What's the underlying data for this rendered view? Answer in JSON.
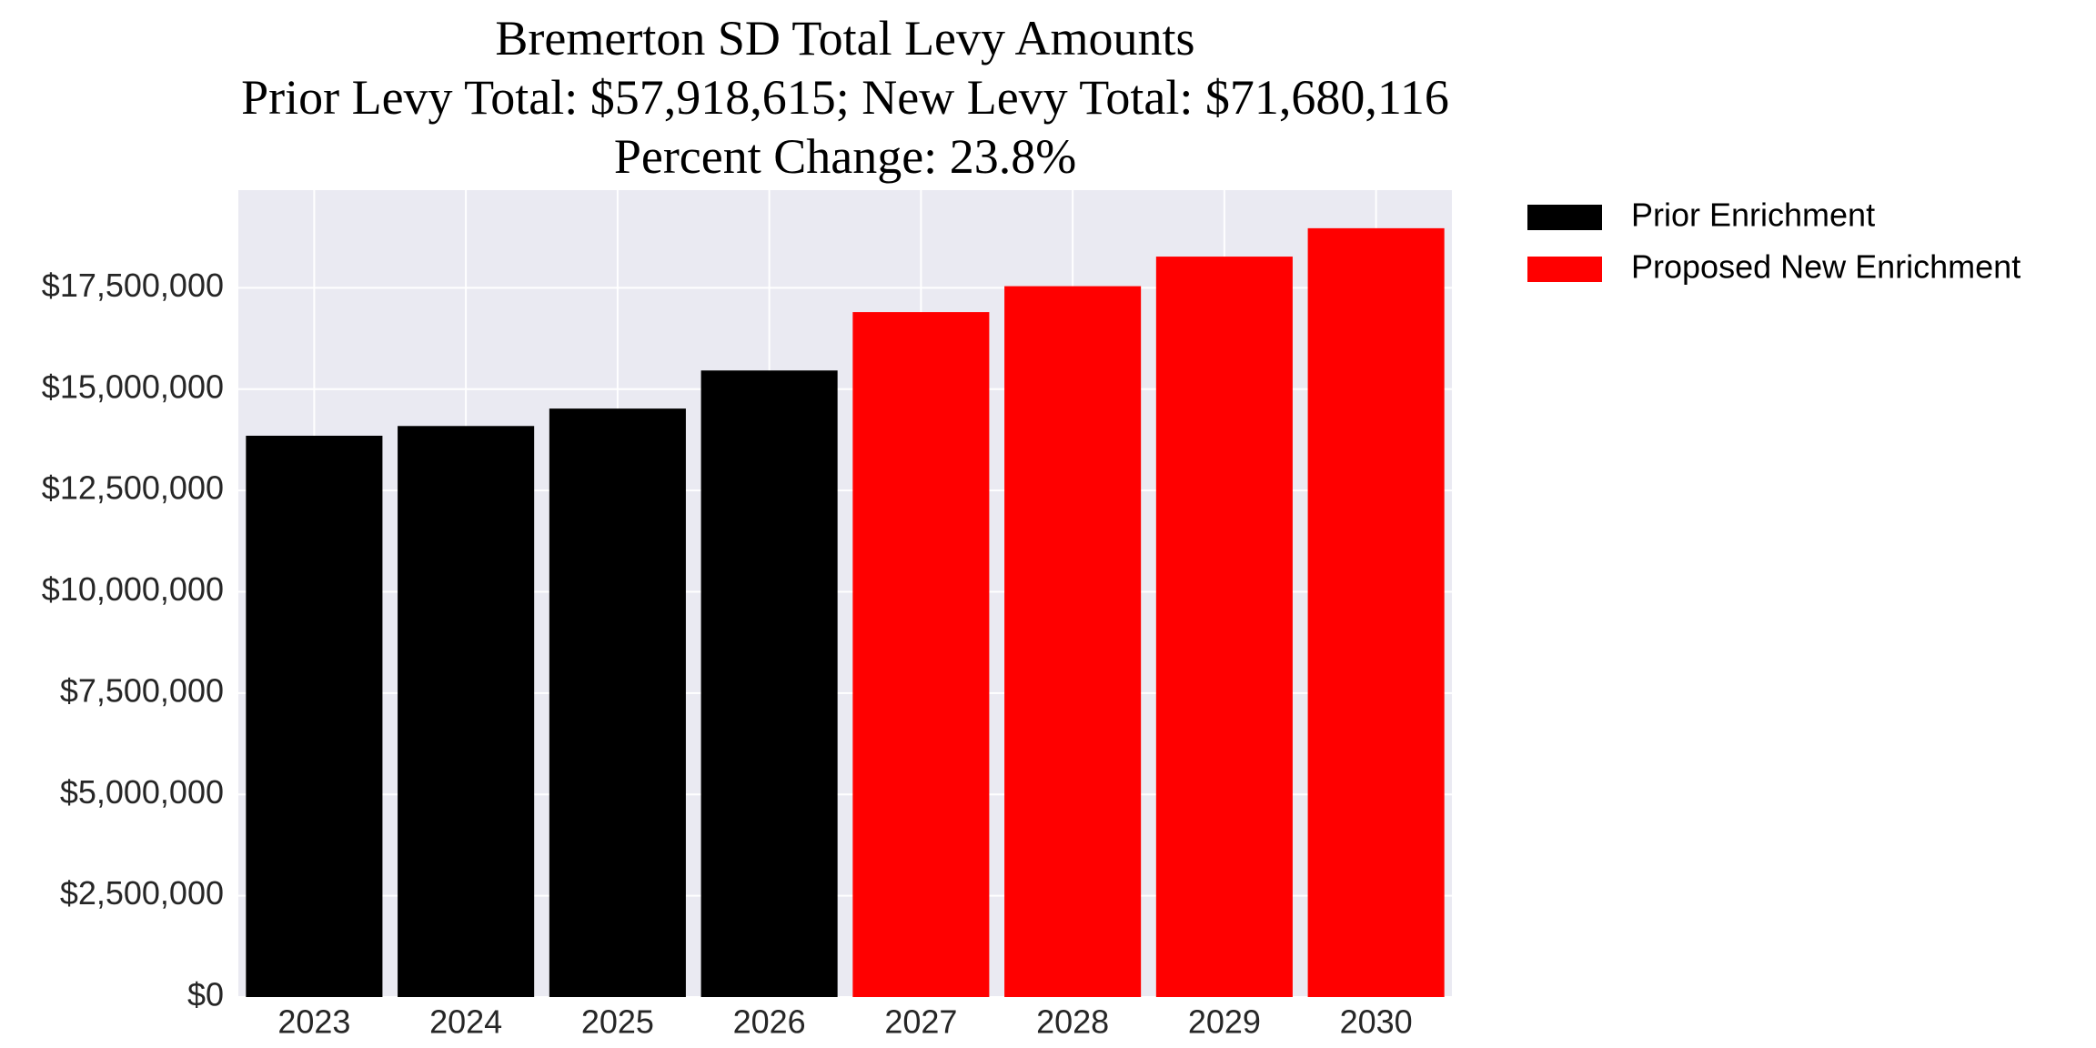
{
  "chart_data": {
    "type": "bar",
    "title": [
      "Bremerton SD Total Levy Amounts",
      "Prior Levy Total:  $57,918,615; New Levy Total: $71,680,116",
      "Percent Change: 23.8%"
    ],
    "categories": [
      "2023",
      "2024",
      "2025",
      "2026",
      "2027",
      "2028",
      "2029",
      "2030"
    ],
    "series": [
      {
        "name": "Prior Enrichment",
        "color": "#000000",
        "values": [
          13850000,
          14090000,
          14520000,
          15460000,
          null,
          null,
          null,
          null
        ]
      },
      {
        "name": "Proposed New Enrichment",
        "color": "#ff0000",
        "values": [
          null,
          null,
          null,
          null,
          16900000,
          17540000,
          18270000,
          18970000
        ]
      }
    ],
    "ylim": [
      0,
      19910000
    ],
    "yticks": [
      {
        "value": 0,
        "label": "$0"
      },
      {
        "value": 2500000,
        "label": "$2,500,000"
      },
      {
        "value": 5000000,
        "label": "$5,000,000"
      },
      {
        "value": 7500000,
        "label": "$7,500,000"
      },
      {
        "value": 10000000,
        "label": "$10,000,000"
      },
      {
        "value": 12500000,
        "label": "$12,500,000"
      },
      {
        "value": 15000000,
        "label": "$15,000,000"
      },
      {
        "value": 17500000,
        "label": "$17,500,000"
      }
    ],
    "grid": true,
    "legend": "outside upper right"
  }
}
